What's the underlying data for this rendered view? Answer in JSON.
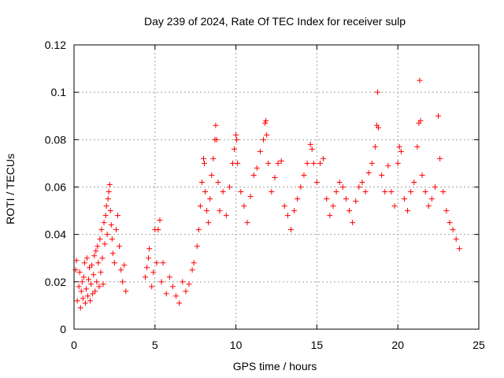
{
  "chart_data": {
    "type": "scatter",
    "title": "Day 239 of 2024, Rate Of TEC Index for receiver sulp",
    "xlabel": "GPS time / hours",
    "ylabel": "ROTI / TECUs",
    "xlim": [
      0,
      25
    ],
    "ylim": [
      0,
      0.12
    ],
    "xticks": [
      0,
      5,
      10,
      15,
      20,
      25
    ],
    "xtick_labels": [
      "0",
      "5",
      "10",
      "15",
      "20",
      "25"
    ],
    "yticks": [
      0,
      0.02,
      0.04,
      0.06,
      0.08,
      0.1,
      0.12
    ],
    "ytick_labels": [
      "0",
      "0.02",
      "0.04",
      "0.06",
      "0.08",
      "0.1",
      "0.12"
    ],
    "grid": true,
    "marker": "plus",
    "color": "#ff0000",
    "series": [
      {
        "values": [
          [
            0.1,
            0.025
          ],
          [
            0.15,
            0.029
          ],
          [
            0.2,
            0.012
          ],
          [
            0.3,
            0.018
          ],
          [
            0.35,
            0.024
          ],
          [
            0.4,
            0.009
          ],
          [
            0.45,
            0.016
          ],
          [
            0.5,
            0.02
          ],
          [
            0.55,
            0.013
          ],
          [
            0.6,
            0.022
          ],
          [
            0.65,
            0.028
          ],
          [
            0.7,
            0.011
          ],
          [
            0.75,
            0.017
          ],
          [
            0.8,
            0.03
          ],
          [
            0.85,
            0.014
          ],
          [
            0.9,
            0.021
          ],
          [
            0.95,
            0.026
          ],
          [
            1.0,
            0.012
          ],
          [
            1.05,
            0.019
          ],
          [
            1.1,
            0.027
          ],
          [
            1.15,
            0.015
          ],
          [
            1.2,
            0.023
          ],
          [
            1.25,
            0.031
          ],
          [
            1.3,
            0.016
          ],
          [
            1.35,
            0.033
          ],
          [
            1.4,
            0.02
          ],
          [
            1.45,
            0.035
          ],
          [
            1.5,
            0.028
          ],
          [
            1.55,
            0.018
          ],
          [
            1.6,
            0.038
          ],
          [
            1.65,
            0.024
          ],
          [
            1.7,
            0.042
          ],
          [
            1.75,
            0.03
          ],
          [
            1.8,
            0.019
          ],
          [
            1.85,
            0.045
          ],
          [
            1.9,
            0.036
          ],
          [
            1.95,
            0.048
          ],
          [
            2.0,
            0.052
          ],
          [
            2.05,
            0.04
          ],
          [
            2.1,
            0.055
          ],
          [
            2.15,
            0.058
          ],
          [
            2.2,
            0.061
          ],
          [
            2.25,
            0.05
          ],
          [
            2.3,
            0.044
          ],
          [
            2.35,
            0.038
          ],
          [
            2.4,
            0.032
          ],
          [
            2.5,
            0.028
          ],
          [
            2.6,
            0.042
          ],
          [
            2.7,
            0.048
          ],
          [
            2.8,
            0.035
          ],
          [
            2.9,
            0.025
          ],
          [
            3.0,
            0.02
          ],
          [
            3.1,
            0.027
          ],
          [
            3.2,
            0.016
          ],
          [
            4.4,
            0.022
          ],
          [
            4.5,
            0.026
          ],
          [
            4.6,
            0.03
          ],
          [
            4.65,
            0.034
          ],
          [
            4.8,
            0.018
          ],
          [
            4.9,
            0.024
          ],
          [
            5.0,
            0.042
          ],
          [
            5.1,
            0.028
          ],
          [
            5.2,
            0.042
          ],
          [
            5.3,
            0.046
          ],
          [
            5.4,
            0.02
          ],
          [
            5.5,
            0.028
          ],
          [
            5.7,
            0.015
          ],
          [
            5.9,
            0.022
          ],
          [
            6.1,
            0.018
          ],
          [
            6.3,
            0.014
          ],
          [
            6.5,
            0.011
          ],
          [
            6.7,
            0.02
          ],
          [
            6.9,
            0.016
          ],
          [
            7.1,
            0.019
          ],
          [
            7.3,
            0.025
          ],
          [
            7.4,
            0.028
          ],
          [
            7.6,
            0.035
          ],
          [
            7.7,
            0.042
          ],
          [
            7.8,
            0.052
          ],
          [
            7.9,
            0.062
          ],
          [
            8.0,
            0.072
          ],
          [
            8.05,
            0.07
          ],
          [
            8.1,
            0.058
          ],
          [
            8.2,
            0.05
          ],
          [
            8.3,
            0.045
          ],
          [
            8.4,
            0.055
          ],
          [
            8.5,
            0.065
          ],
          [
            8.6,
            0.072
          ],
          [
            8.7,
            0.08
          ],
          [
            8.75,
            0.086
          ],
          [
            8.8,
            0.08
          ],
          [
            8.9,
            0.062
          ],
          [
            9.0,
            0.05
          ],
          [
            9.2,
            0.058
          ],
          [
            9.4,
            0.048
          ],
          [
            9.6,
            0.06
          ],
          [
            9.8,
            0.07
          ],
          [
            9.9,
            0.076
          ],
          [
            10.0,
            0.082
          ],
          [
            10.05,
            0.08
          ],
          [
            10.1,
            0.07
          ],
          [
            10.3,
            0.058
          ],
          [
            10.5,
            0.052
          ],
          [
            10.7,
            0.045
          ],
          [
            10.9,
            0.056
          ],
          [
            11.1,
            0.065
          ],
          [
            11.3,
            0.068
          ],
          [
            11.5,
            0.075
          ],
          [
            11.7,
            0.08
          ],
          [
            11.8,
            0.087
          ],
          [
            11.85,
            0.088
          ],
          [
            11.9,
            0.082
          ],
          [
            12.0,
            0.07
          ],
          [
            12.2,
            0.058
          ],
          [
            12.4,
            0.064
          ],
          [
            12.6,
            0.07
          ],
          [
            12.8,
            0.071
          ],
          [
            13.0,
            0.052
          ],
          [
            13.2,
            0.048
          ],
          [
            13.4,
            0.042
          ],
          [
            13.6,
            0.05
          ],
          [
            13.8,
            0.055
          ],
          [
            14.0,
            0.06
          ],
          [
            14.2,
            0.065
          ],
          [
            14.4,
            0.07
          ],
          [
            14.6,
            0.078
          ],
          [
            14.7,
            0.076
          ],
          [
            14.8,
            0.07
          ],
          [
            15.0,
            0.062
          ],
          [
            15.2,
            0.07
          ],
          [
            15.4,
            0.072
          ],
          [
            15.6,
            0.055
          ],
          [
            15.8,
            0.048
          ],
          [
            16.0,
            0.052
          ],
          [
            16.2,
            0.058
          ],
          [
            16.4,
            0.062
          ],
          [
            16.6,
            0.06
          ],
          [
            16.8,
            0.055
          ],
          [
            17.0,
            0.05
          ],
          [
            17.2,
            0.045
          ],
          [
            17.4,
            0.054
          ],
          [
            17.6,
            0.06
          ],
          [
            17.8,
            0.062
          ],
          [
            18.0,
            0.058
          ],
          [
            18.2,
            0.066
          ],
          [
            18.4,
            0.07
          ],
          [
            18.6,
            0.077
          ],
          [
            18.7,
            0.086
          ],
          [
            18.75,
            0.1
          ],
          [
            18.8,
            0.085
          ],
          [
            19.0,
            0.065
          ],
          [
            19.2,
            0.058
          ],
          [
            19.4,
            0.069
          ],
          [
            19.6,
            0.058
          ],
          [
            19.8,
            0.052
          ],
          [
            20.0,
            0.07
          ],
          [
            20.1,
            0.077
          ],
          [
            20.2,
            0.075
          ],
          [
            20.4,
            0.055
          ],
          [
            20.6,
            0.05
          ],
          [
            20.8,
            0.058
          ],
          [
            21.0,
            0.062
          ],
          [
            21.2,
            0.077
          ],
          [
            21.3,
            0.087
          ],
          [
            21.35,
            0.105
          ],
          [
            21.4,
            0.088
          ],
          [
            21.5,
            0.065
          ],
          [
            21.7,
            0.058
          ],
          [
            21.9,
            0.052
          ],
          [
            22.1,
            0.055
          ],
          [
            22.3,
            0.06
          ],
          [
            22.5,
            0.09
          ],
          [
            22.6,
            0.072
          ],
          [
            22.8,
            0.058
          ],
          [
            23.0,
            0.05
          ],
          [
            23.2,
            0.045
          ],
          [
            23.4,
            0.042
          ],
          [
            23.6,
            0.038
          ],
          [
            23.8,
            0.034
          ]
        ]
      }
    ]
  }
}
